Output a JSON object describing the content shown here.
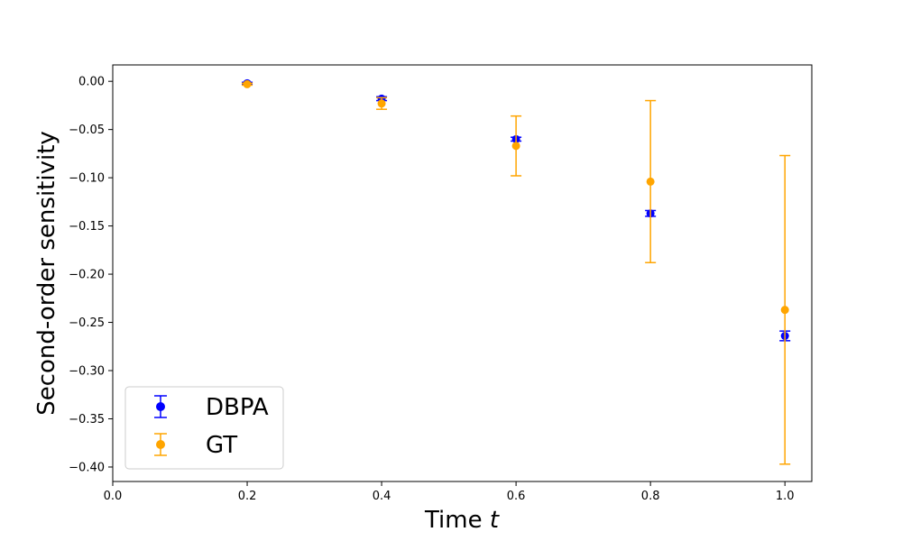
{
  "chart_data": {
    "type": "scatter",
    "xlabel": "Time",
    "xlabel_var": "t",
    "ylabel": "Second-order sensitivity",
    "xlim": [
      0.0,
      1.04
    ],
    "ylim": [
      -0.415,
      0.017
    ],
    "x_ticks": [
      "0.0",
      "0.2",
      "0.4",
      "0.6",
      "0.8",
      "1.0"
    ],
    "y_ticks": [
      "0.00",
      "-0.05",
      "-0.10",
      "-0.15",
      "-0.20",
      "-0.25",
      "-0.30",
      "-0.35",
      "-0.40"
    ],
    "grid": false,
    "legend_position": "lower-left",
    "series": [
      {
        "name": "DBPA",
        "color": "#0000ff",
        "x": [
          0.2,
          0.4,
          0.6,
          0.8,
          1.0
        ],
        "y": [
          -0.002,
          -0.018,
          -0.06,
          -0.137,
          -0.264
        ],
        "err": [
          0.001,
          0.002,
          0.002,
          0.003,
          0.005
        ]
      },
      {
        "name": "GT",
        "color": "#ffa500",
        "x": [
          0.2,
          0.4,
          0.6,
          0.8,
          1.0
        ],
        "y": [
          -0.003,
          -0.023,
          -0.067,
          -0.104,
          -0.237
        ],
        "err": [
          0.001,
          0.006,
          0.031,
          0.084,
          0.16
        ]
      }
    ]
  }
}
